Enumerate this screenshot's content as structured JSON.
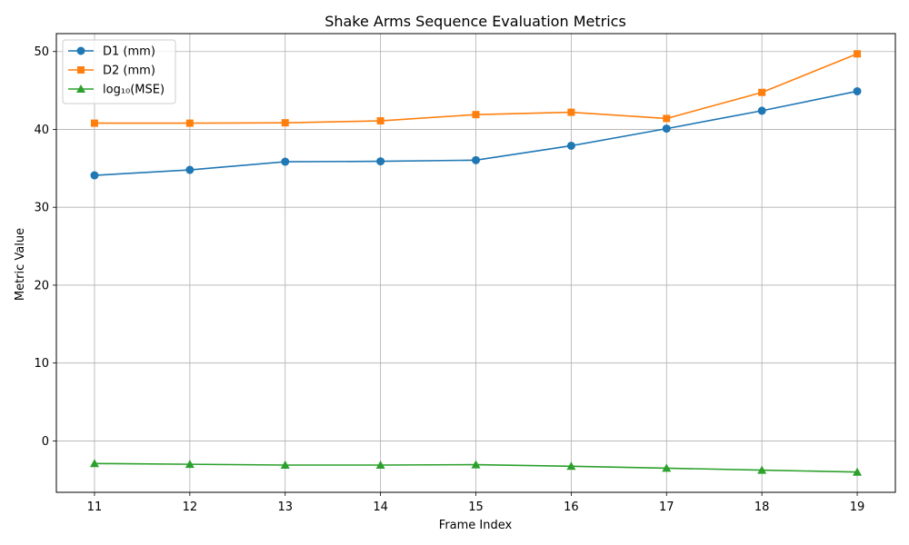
{
  "chart_data": {
    "type": "line",
    "title": "Shake Arms Sequence Evaluation Metrics",
    "xlabel": "Frame Index",
    "ylabel": "Metric Value",
    "x": [
      11,
      12,
      13,
      14,
      15,
      16,
      17,
      18,
      19
    ],
    "xlim": [
      10.6,
      19.4
    ],
    "ylim": [
      -6.6,
      52.3
    ],
    "xticks": [
      "11",
      "12",
      "13",
      "14",
      "15",
      "16",
      "17",
      "18",
      "19"
    ],
    "yticks": [
      0,
      10,
      20,
      30,
      40,
      50
    ],
    "ytick_labels": [
      "0",
      "10",
      "20",
      "30",
      "40",
      "50"
    ],
    "grid": true,
    "legend_position": "top-left",
    "series": [
      {
        "name": "D1 (mm)",
        "color": "#1f77b4",
        "marker": "circle",
        "values": [
          34.1,
          34.8,
          35.85,
          35.9,
          36.05,
          37.9,
          40.1,
          42.4,
          44.9
        ]
      },
      {
        "name": "D2 (mm)",
        "color": "#ff7f0e",
        "marker": "square",
        "values": [
          40.8,
          40.8,
          40.85,
          41.1,
          41.9,
          42.2,
          41.4,
          44.75,
          49.7
        ]
      },
      {
        "name": "log₁₀(MSE)",
        "color": "#2ca02c",
        "marker": "triangle",
        "values": [
          -2.9,
          -3.0,
          -3.1,
          -3.1,
          -3.05,
          -3.25,
          -3.5,
          -3.75,
          -4.0
        ]
      }
    ]
  }
}
